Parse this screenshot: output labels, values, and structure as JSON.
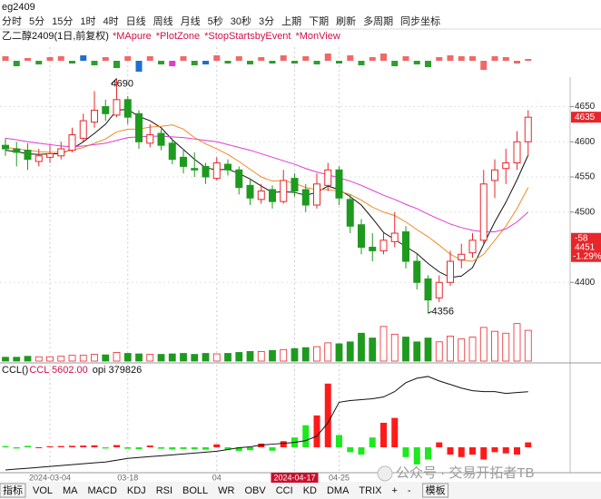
{
  "symbol": "eg2409",
  "toolbar": [
    "分时",
    "5分",
    "15分",
    "1时",
    "4时",
    "日线",
    "周线",
    "月线",
    "5秒",
    "30秒",
    "3分",
    "上期",
    "下期",
    "刷新",
    "多周期",
    "同步坐标"
  ],
  "tabs": [
    "指标",
    "VOL",
    "MA",
    "MACD",
    "KDJ",
    "RSI",
    "BOLL",
    "WR",
    "OBV",
    "CCI",
    "KD",
    "DMA",
    "TRIX",
    "+",
    "-",
    "模板"
  ],
  "watermark": "公众号 · 交易开拓者TB",
  "chart_data": {
    "type": "candlestick",
    "title": "乙二醇2409(1日,前复权)",
    "studies": [
      {
        "name": "*MApure",
        "color": "#d0104a"
      },
      {
        "name": "*PlotZone",
        "color": "#d0104a"
      },
      {
        "name": "*StopStartsbyEvent",
        "color": "#d0104a"
      },
      {
        "name": "*MonView",
        "color": "#d0104a"
      }
    ],
    "up_color": "#e8262a",
    "down_color": "#1e9a1e",
    "categories": [
      null,
      null,
      null,
      null,
      "2024-03-04",
      null,
      null,
      null,
      null,
      null,
      null,
      "03-18",
      null,
      null,
      null,
      null,
      null,
      null,
      null,
      "04",
      null,
      null,
      null,
      null,
      null,
      null,
      "2024-04-17",
      null,
      null,
      null,
      "04-25",
      null,
      null,
      null,
      null,
      null,
      null,
      null,
      null,
      null,
      null,
      null,
      null,
      null,
      null,
      null,
      null,
      null
    ],
    "open": [
      4595,
      4590,
      4588,
      4572,
      4578,
      4580,
      4588,
      4605,
      4628,
      4650,
      4638,
      4660,
      4640,
      4598,
      4612,
      4598,
      4578,
      4562,
      4565,
      4548,
      4568,
      4560,
      4538,
      4518,
      4532,
      4515,
      4548,
      4532,
      4510,
      4538,
      4560,
      4518,
      4482,
      4450,
      4445,
      4458,
      4472,
      4430,
      4405,
      4378,
      4400,
      4432,
      4442,
      4460,
      4545,
      4562,
      4570,
      4600
    ],
    "high": [
      4605,
      4600,
      4598,
      4590,
      4595,
      4600,
      4620,
      4640,
      4672,
      4660,
      4690,
      4665,
      4645,
      4625,
      4618,
      4605,
      4590,
      4585,
      4570,
      4578,
      4575,
      4565,
      4548,
      4540,
      4538,
      4560,
      4555,
      4540,
      4555,
      4570,
      4565,
      4525,
      4490,
      4470,
      4470,
      4500,
      4480,
      4440,
      4410,
      4410,
      4445,
      4455,
      4470,
      4560,
      4575,
      4590,
      4615,
      4645
    ],
    "low": [
      4580,
      4565,
      4560,
      4565,
      4570,
      4575,
      4585,
      4600,
      4620,
      4630,
      4635,
      4625,
      4590,
      4592,
      4588,
      4568,
      4555,
      4550,
      4540,
      4545,
      4552,
      4525,
      4510,
      4512,
      4505,
      4512,
      4522,
      4500,
      4505,
      4530,
      4510,
      4470,
      4440,
      4430,
      4440,
      4450,
      4420,
      4390,
      4356,
      4372,
      4395,
      4420,
      4435,
      4455,
      4520,
      4540,
      4560,
      4580
    ],
    "close": [
      4590,
      4585,
      4575,
      4580,
      4583,
      4590,
      4610,
      4630,
      4645,
      4640,
      4660,
      4635,
      4600,
      4610,
      4595,
      4575,
      4565,
      4560,
      4550,
      4570,
      4560,
      4535,
      4520,
      4530,
      4515,
      4545,
      4530,
      4510,
      4540,
      4560,
      4520,
      4480,
      4450,
      4445,
      4460,
      4470,
      4430,
      4400,
      4375,
      4400,
      4430,
      4440,
      4460,
      4540,
      4560,
      4570,
      4600,
      4635
    ],
    "ylim": [
      4350,
      4692
    ],
    "yticks": [
      4400,
      4500,
      4550,
      4600,
      4650
    ],
    "grid": true,
    "ma_lines": [
      {
        "color": "#111111",
        "values": [
          4588,
          4586,
          4583,
          4582,
          4583,
          4583,
          4590,
          4600,
          4612,
          4625,
          4645,
          4646,
          4636,
          4630,
          4620,
          4603,
          4589,
          4575,
          4563,
          4560,
          4561,
          4555,
          4547,
          4537,
          4528,
          4529,
          4528,
          4524,
          4528,
          4537,
          4532,
          4522,
          4510,
          4491,
          4471,
          4461,
          4451,
          4441,
          4427,
          4415,
          4407,
          4409,
          4421,
          4454,
          4486,
          4514,
          4546,
          4581
        ]
      },
      {
        "color": "#f08a24",
        "values": [
          4592,
          4590,
          4588,
          4586,
          4585,
          4585,
          4588,
          4592,
          4598,
          4604,
          4614,
          4618,
          4618,
          4621,
          4622,
          4624,
          4618,
          4606,
          4597,
          4590,
          4582,
          4572,
          4561,
          4550,
          4544,
          4545,
          4541,
          4535,
          4532,
          4532,
          4530,
          4525,
          4517,
          4507,
          4500,
          4495,
          4486,
          4475,
          4465,
          4453,
          4440,
          4432,
          4430,
          4440,
          4460,
          4480,
          4505,
          4535
        ]
      },
      {
        "color": "#e23ad6",
        "values": [
          4605,
          4603,
          4600,
          4598,
          4596,
          4594,
          4593,
          4594,
          4596,
          4598,
          4602,
          4606,
          4607,
          4608,
          4608,
          4607,
          4606,
          4604,
          4602,
          4600,
          4596,
          4592,
          4588,
          4583,
          4578,
          4573,
          4568,
          4562,
          4557,
          4553,
          4549,
          4544,
          4538,
          4531,
          4524,
          4518,
          4511,
          4505,
          4497,
          4490,
          4483,
          4478,
          4474,
          4472,
          4472,
          4476,
          4486,
          4500
        ]
      }
    ],
    "cursor": {
      "change": -58,
      "price": 4451,
      "change_pct": {
        "value": -1.29,
        "label": "-1.29%"
      }
    },
    "signals": {
      "ylim": [
        -15,
        15
      ],
      "values": [
        5,
        -6,
        3,
        -4,
        4,
        5,
        -3,
        6,
        -5,
        4,
        -8,
        5,
        -12,
        5,
        -4,
        -6,
        5,
        -5,
        -4,
        6,
        -3,
        5,
        -4,
        4,
        -3,
        6,
        -3,
        5,
        -4,
        8,
        -3,
        6,
        -5,
        4,
        8,
        -6,
        5,
        -4,
        -7,
        4,
        6,
        5,
        5,
        -10,
        5,
        4,
        -3,
        2
      ],
      "colors": [
        "#f06868",
        "#2aa02a",
        "#f06868",
        "#2aa02a",
        "#f06868",
        "#f06868",
        "#2aa02a",
        "#1f6fd0",
        "#2aa02a",
        "#f06868",
        "#2aa02a",
        "#f06868",
        "#1f6fd0",
        "#f06868",
        "#2aa02a",
        "#e23ad6",
        "#f06868",
        "#2aa02a",
        "#1f6fd0",
        "#f06868",
        "#2aa02a",
        "#f06868",
        "#2aa02a",
        "#f06868",
        "#2aa02a",
        "#f06868",
        "#2aa02a",
        "#f06868",
        "#2aa02a",
        "#f06868",
        "#2aa02a",
        "#f06868",
        "#2aa02a",
        "#f06868",
        "#f06868",
        "#2aa02a",
        "#f06868",
        "#2aa02a",
        "#2aa02a",
        "#f06868",
        "#f06868",
        "#f06868",
        "#f06868",
        "#f06868",
        "#f06868",
        "#f06868",
        "#f06868",
        "#f06868"
      ]
    },
    "volume": {
      "ylim": [
        0,
        100
      ],
      "values": [
        8,
        8,
        10,
        9,
        9,
        10,
        12,
        12,
        14,
        13,
        18,
        16,
        15,
        14,
        14,
        15,
        16,
        14,
        16,
        15,
        16,
        18,
        20,
        20,
        22,
        24,
        26,
        28,
        30,
        38,
        36,
        40,
        58,
        48,
        72,
        56,
        50,
        40,
        48,
        40,
        52,
        46,
        50,
        70,
        62,
        58,
        78,
        64
      ]
    },
    "indicator": {
      "title": "CCL()",
      "readouts": [
        {
          "text": "CCL 5602.00",
          "color": "#d0104a"
        },
        {
          "text": "opi 379826",
          "color": "#111111"
        }
      ],
      "ylim": [
        -10000,
        30000
      ],
      "values": [
        500,
        -500,
        600,
        -300,
        400,
        500,
        600,
        700,
        800,
        -500,
        900,
        -600,
        -800,
        700,
        -600,
        -900,
        -700,
        -800,
        -1000,
        1200,
        -900,
        -1500,
        -1200,
        1500,
        -1400,
        2500,
        4000,
        9000,
        13000,
        26000,
        5000,
        -2000,
        -3000,
        4000,
        10000,
        12000,
        -4000,
        -7000,
        -5000,
        2000,
        -3000,
        -4000,
        -3000,
        -5000,
        -2000,
        -2500,
        -3000,
        2000
      ],
      "line": {
        "color": "#111111",
        "ylim": [
          290000,
          400000
        ],
        "values": [
          292000,
          293000,
          294000,
          295000,
          296000,
          297000,
          298000,
          299000,
          300000,
          301000,
          303000,
          305000,
          306000,
          307000,
          308000,
          309000,
          310000,
          311000,
          312000,
          313000,
          315000,
          317000,
          318000,
          320000,
          321000,
          322000,
          323000,
          325000,
          330000,
          345000,
          368000,
          370000,
          371000,
          372000,
          374000,
          380000,
          390000,
          395000,
          397000,
          392000,
          388000,
          384000,
          381000,
          380000,
          380000,
          378000,
          379000,
          379826
        ]
      }
    }
  }
}
